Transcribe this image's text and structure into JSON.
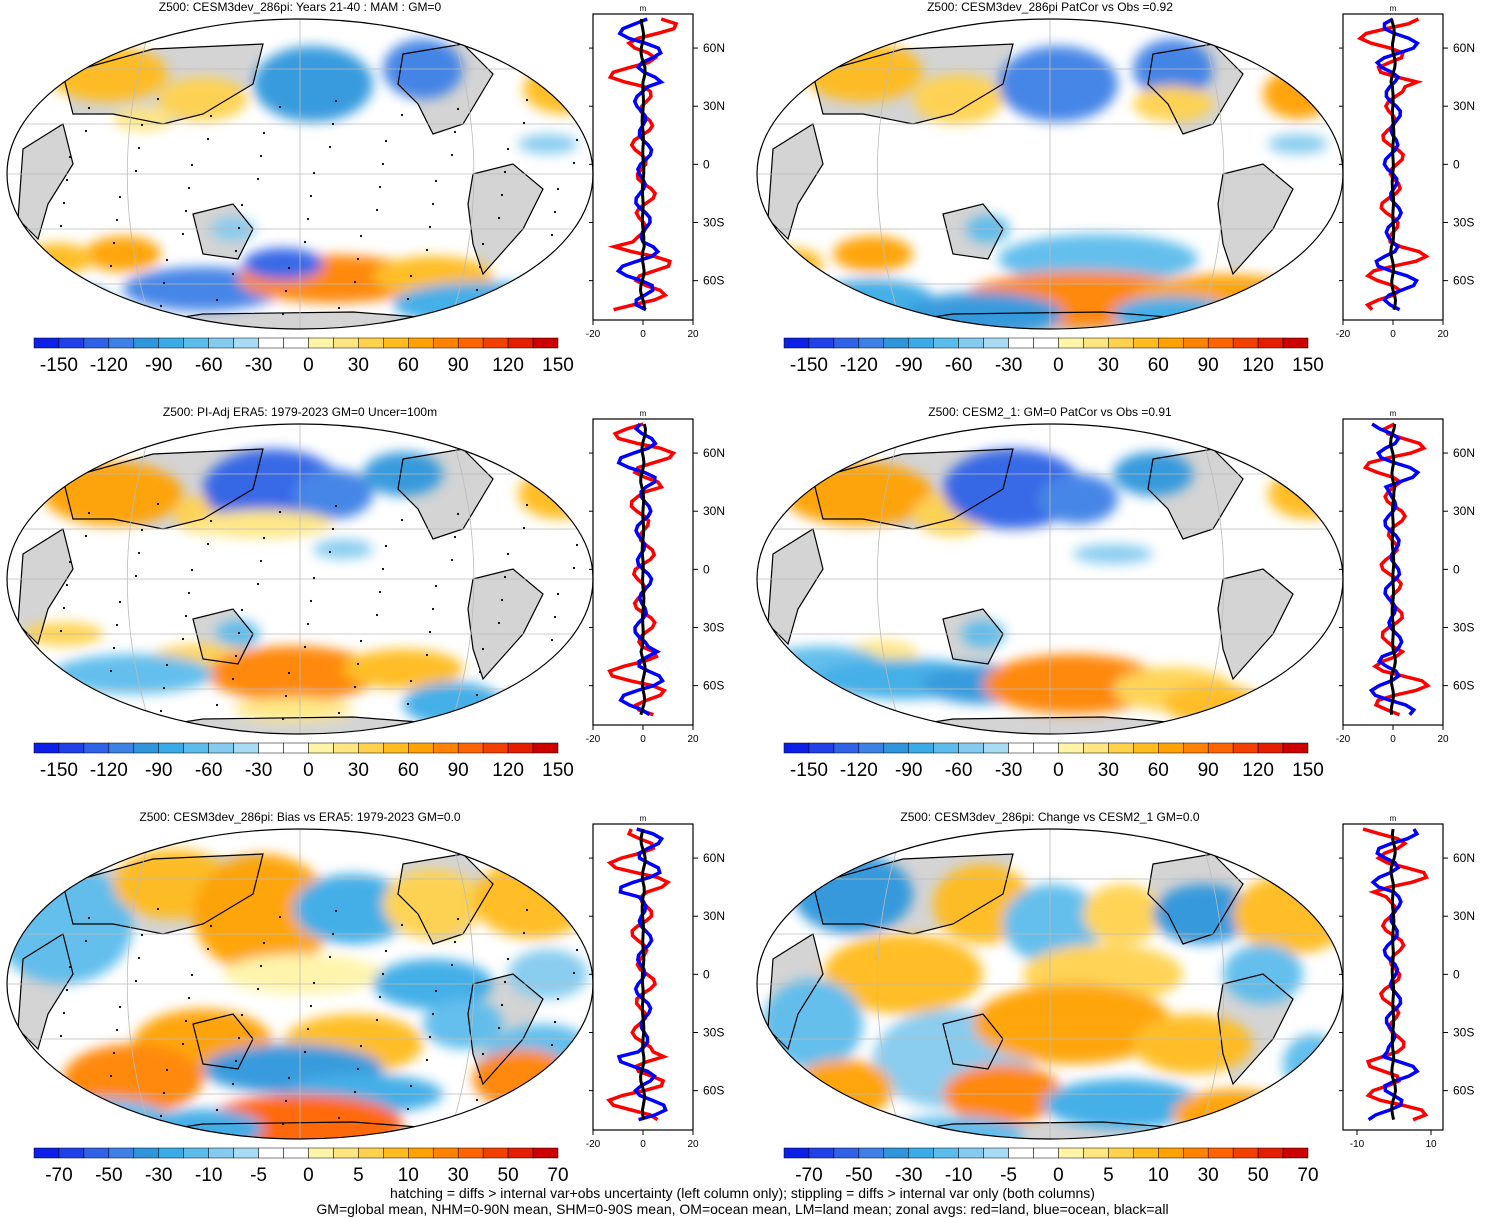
{
  "panels": [
    {
      "title": "Z500: CESM3dev_286pi: Years 21-40 : MAM : GM=0",
      "stipple": true,
      "colorbar": [
        "-150",
        "-120",
        "-90",
        "-60",
        "-30",
        "0",
        "30",
        "60",
        "90",
        "120",
        "150"
      ],
      "zonal_ticks": [
        "-20",
        "0",
        "20"
      ],
      "zonal_unit": "m"
    },
    {
      "title": "Z500: CESM3dev_286pi PatCor vs Obs =0.92",
      "stipple": false,
      "colorbar": [
        "-150",
        "-120",
        "-90",
        "-60",
        "-30",
        "0",
        "30",
        "60",
        "90",
        "120",
        "150"
      ],
      "zonal_ticks": [
        "-20",
        "0",
        "20"
      ],
      "zonal_unit": "m"
    },
    {
      "title": "Z500: PI-Adj ERA5: 1979-2023 GM=0 Uncer=100m",
      "stipple": true,
      "colorbar": [
        "-150",
        "-120",
        "-90",
        "-60",
        "-30",
        "0",
        "30",
        "60",
        "90",
        "120",
        "150"
      ],
      "zonal_ticks": [
        "-20",
        "0",
        "20"
      ],
      "zonal_unit": "m"
    },
    {
      "title": "Z500: CESM2_1: GM=0 PatCor vs Obs =0.91",
      "stipple": false,
      "colorbar": [
        "-150",
        "-120",
        "-90",
        "-60",
        "-30",
        "0",
        "30",
        "60",
        "90",
        "120",
        "150"
      ],
      "zonal_ticks": [
        "-20",
        "0",
        "20"
      ],
      "zonal_unit": "m"
    },
    {
      "title": "Z500: CESM3dev_286pi: Bias vs ERA5: 1979-2023 GM=0.0",
      "stipple": true,
      "colorbar": [
        "-70",
        "-50",
        "-30",
        "-10",
        "-5",
        "0",
        "5",
        "10",
        "30",
        "50",
        "70"
      ],
      "zonal_ticks": [
        "-20",
        "0",
        "20"
      ],
      "zonal_unit": "m"
    },
    {
      "title": "Z500: CESM3dev_286pi: Change vs CESM2_1 GM=0.0",
      "stipple": false,
      "colorbar": [
        "-70",
        "-50",
        "-30",
        "-10",
        "-5",
        "0",
        "5",
        "10",
        "30",
        "50",
        "70"
      ],
      "zonal_ticks": [
        "-10",
        "10"
      ],
      "zonal_unit": "m"
    }
  ],
  "lat_labels": [
    "60N",
    "30N",
    "0",
    "30S",
    "60S"
  ],
  "palette": [
    "#0b1fe6",
    "#2040e8",
    "#2f62e6",
    "#3d80e6",
    "#2f96dc",
    "#3aabe6",
    "#5cbcec",
    "#84cbef",
    "#a8dbf4",
    "#ffffff",
    "#ffffff",
    "#fff4a8",
    "#ffe680",
    "#ffd24d",
    "#ffbb1f",
    "#ffa100",
    "#ff8300",
    "#ff6400",
    "#f24000",
    "#e61e00",
    "#cc0000"
  ],
  "colors": {
    "land": "#d4d4d4",
    "zonal_land": "#ff0000",
    "zonal_ocean": "#0000ff",
    "zonal_all": "#000000"
  },
  "footer": {
    "line1": "hatching = diffs > internal var+obs uncertainty (left column only); stippling = diffs > internal var only (both columns)",
    "line2": "GM=global mean, NHM=0-90N mean, SHM=0-90S mean, OM=ocean mean, LM=land mean; zonal avgs: red=land, blue=ocean, black=all"
  }
}
